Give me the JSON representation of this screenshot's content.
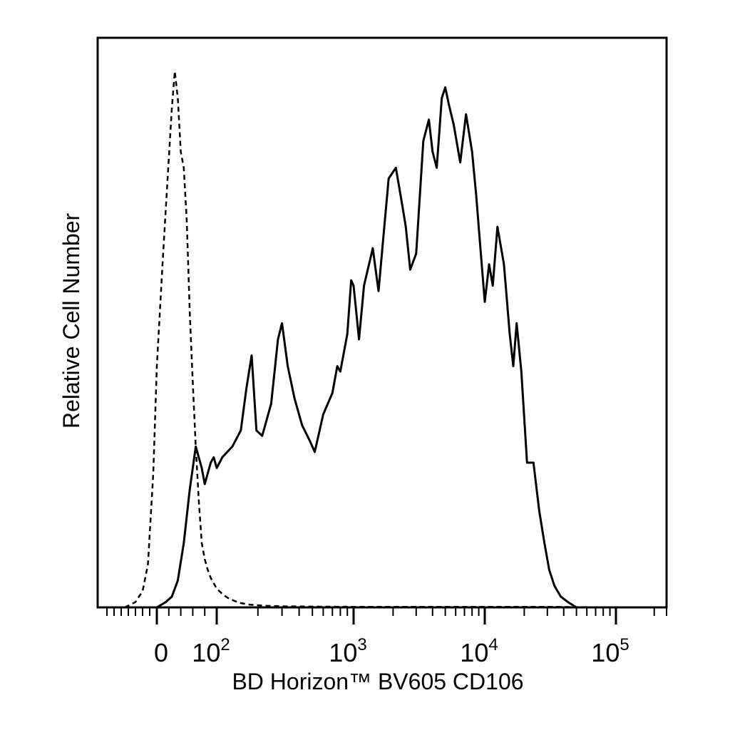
{
  "chart_data": {
    "type": "line",
    "title": "",
    "xlabel": "BD Horizon™ BV605 CD106",
    "ylabel": "Relative Cell Number",
    "x_scale": "biexponential (logicle)",
    "xlim": [
      -150,
      250000
    ],
    "ylim": [
      0,
      1
    ],
    "grid": false,
    "legend": "none",
    "x_tick_labels": [
      {
        "value": 0,
        "base": "0",
        "exp": ""
      },
      {
        "value": 100,
        "base": "10",
        "exp": "2"
      },
      {
        "value": 1000,
        "base": "10",
        "exp": "3"
      },
      {
        "value": 10000,
        "base": "10",
        "exp": "4"
      },
      {
        "value": 100000,
        "base": "10",
        "exp": "5"
      }
    ],
    "series": [
      {
        "style": "dashed",
        "color": "#000000",
        "x": [
          -90,
          -60,
          -40,
          -25,
          -10,
          0,
          10,
          18,
          25,
          30,
          35,
          40,
          45,
          50,
          55,
          60,
          65,
          70,
          75,
          80,
          85,
          90,
          95,
          100,
          110,
          120,
          135,
          150,
          175,
          200,
          230,
          300,
          500,
          1000,
          3000,
          10000,
          30000,
          100000
        ],
        "y": [
          0.0,
          0.01,
          0.03,
          0.08,
          0.25,
          0.45,
          0.65,
          0.8,
          0.93,
          1.0,
          0.95,
          0.85,
          0.82,
          0.72,
          0.55,
          0.42,
          0.3,
          0.2,
          0.12,
          0.09,
          0.07,
          0.055,
          0.045,
          0.035,
          0.025,
          0.018,
          0.012,
          0.008,
          0.005,
          0.004,
          0.003,
          0.002,
          0.0015,
          0.001,
          0.001,
          0.001,
          0.001,
          0.0
        ]
      },
      {
        "style": "solid",
        "color": "#000000",
        "x": [
          0,
          15,
          25,
          35,
          45,
          55,
          65,
          75,
          80,
          85,
          90,
          95,
          100,
          110,
          130,
          150,
          165,
          180,
          195,
          215,
          250,
          280,
          300,
          330,
          370,
          420,
          480,
          520,
          600,
          700,
          760,
          800,
          900,
          960,
          1000,
          1100,
          1200,
          1400,
          1550,
          1700,
          1850,
          2100,
          2350,
          2500,
          2700,
          3000,
          3400,
          3750,
          4000,
          4300,
          4700,
          5000,
          5300,
          5800,
          6500,
          7200,
          8000,
          8600,
          9200,
          10000,
          10800,
          11500,
          12500,
          14000,
          15500,
          16500,
          17500,
          19000,
          21000,
          23500,
          26000,
          28500,
          31000,
          34000,
          38000,
          43000,
          50000,
          58000,
          65000,
          72000
        ],
        "y": [
          0.0,
          0.01,
          0.02,
          0.05,
          0.12,
          0.22,
          0.3,
          0.26,
          0.23,
          0.25,
          0.27,
          0.28,
          0.26,
          0.28,
          0.3,
          0.33,
          0.41,
          0.47,
          0.33,
          0.32,
          0.38,
          0.5,
          0.53,
          0.45,
          0.39,
          0.34,
          0.31,
          0.29,
          0.36,
          0.4,
          0.45,
          0.44,
          0.51,
          0.61,
          0.6,
          0.5,
          0.6,
          0.67,
          0.59,
          0.7,
          0.8,
          0.82,
          0.75,
          0.71,
          0.63,
          0.66,
          0.87,
          0.91,
          0.85,
          0.82,
          0.95,
          0.97,
          0.94,
          0.9,
          0.83,
          0.92,
          0.85,
          0.77,
          0.68,
          0.57,
          0.64,
          0.6,
          0.71,
          0.64,
          0.51,
          0.45,
          0.53,
          0.44,
          0.27,
          0.27,
          0.18,
          0.12,
          0.07,
          0.04,
          0.02,
          0.01,
          0.0,
          0.0,
          0.0,
          0.0
        ]
      }
    ]
  }
}
